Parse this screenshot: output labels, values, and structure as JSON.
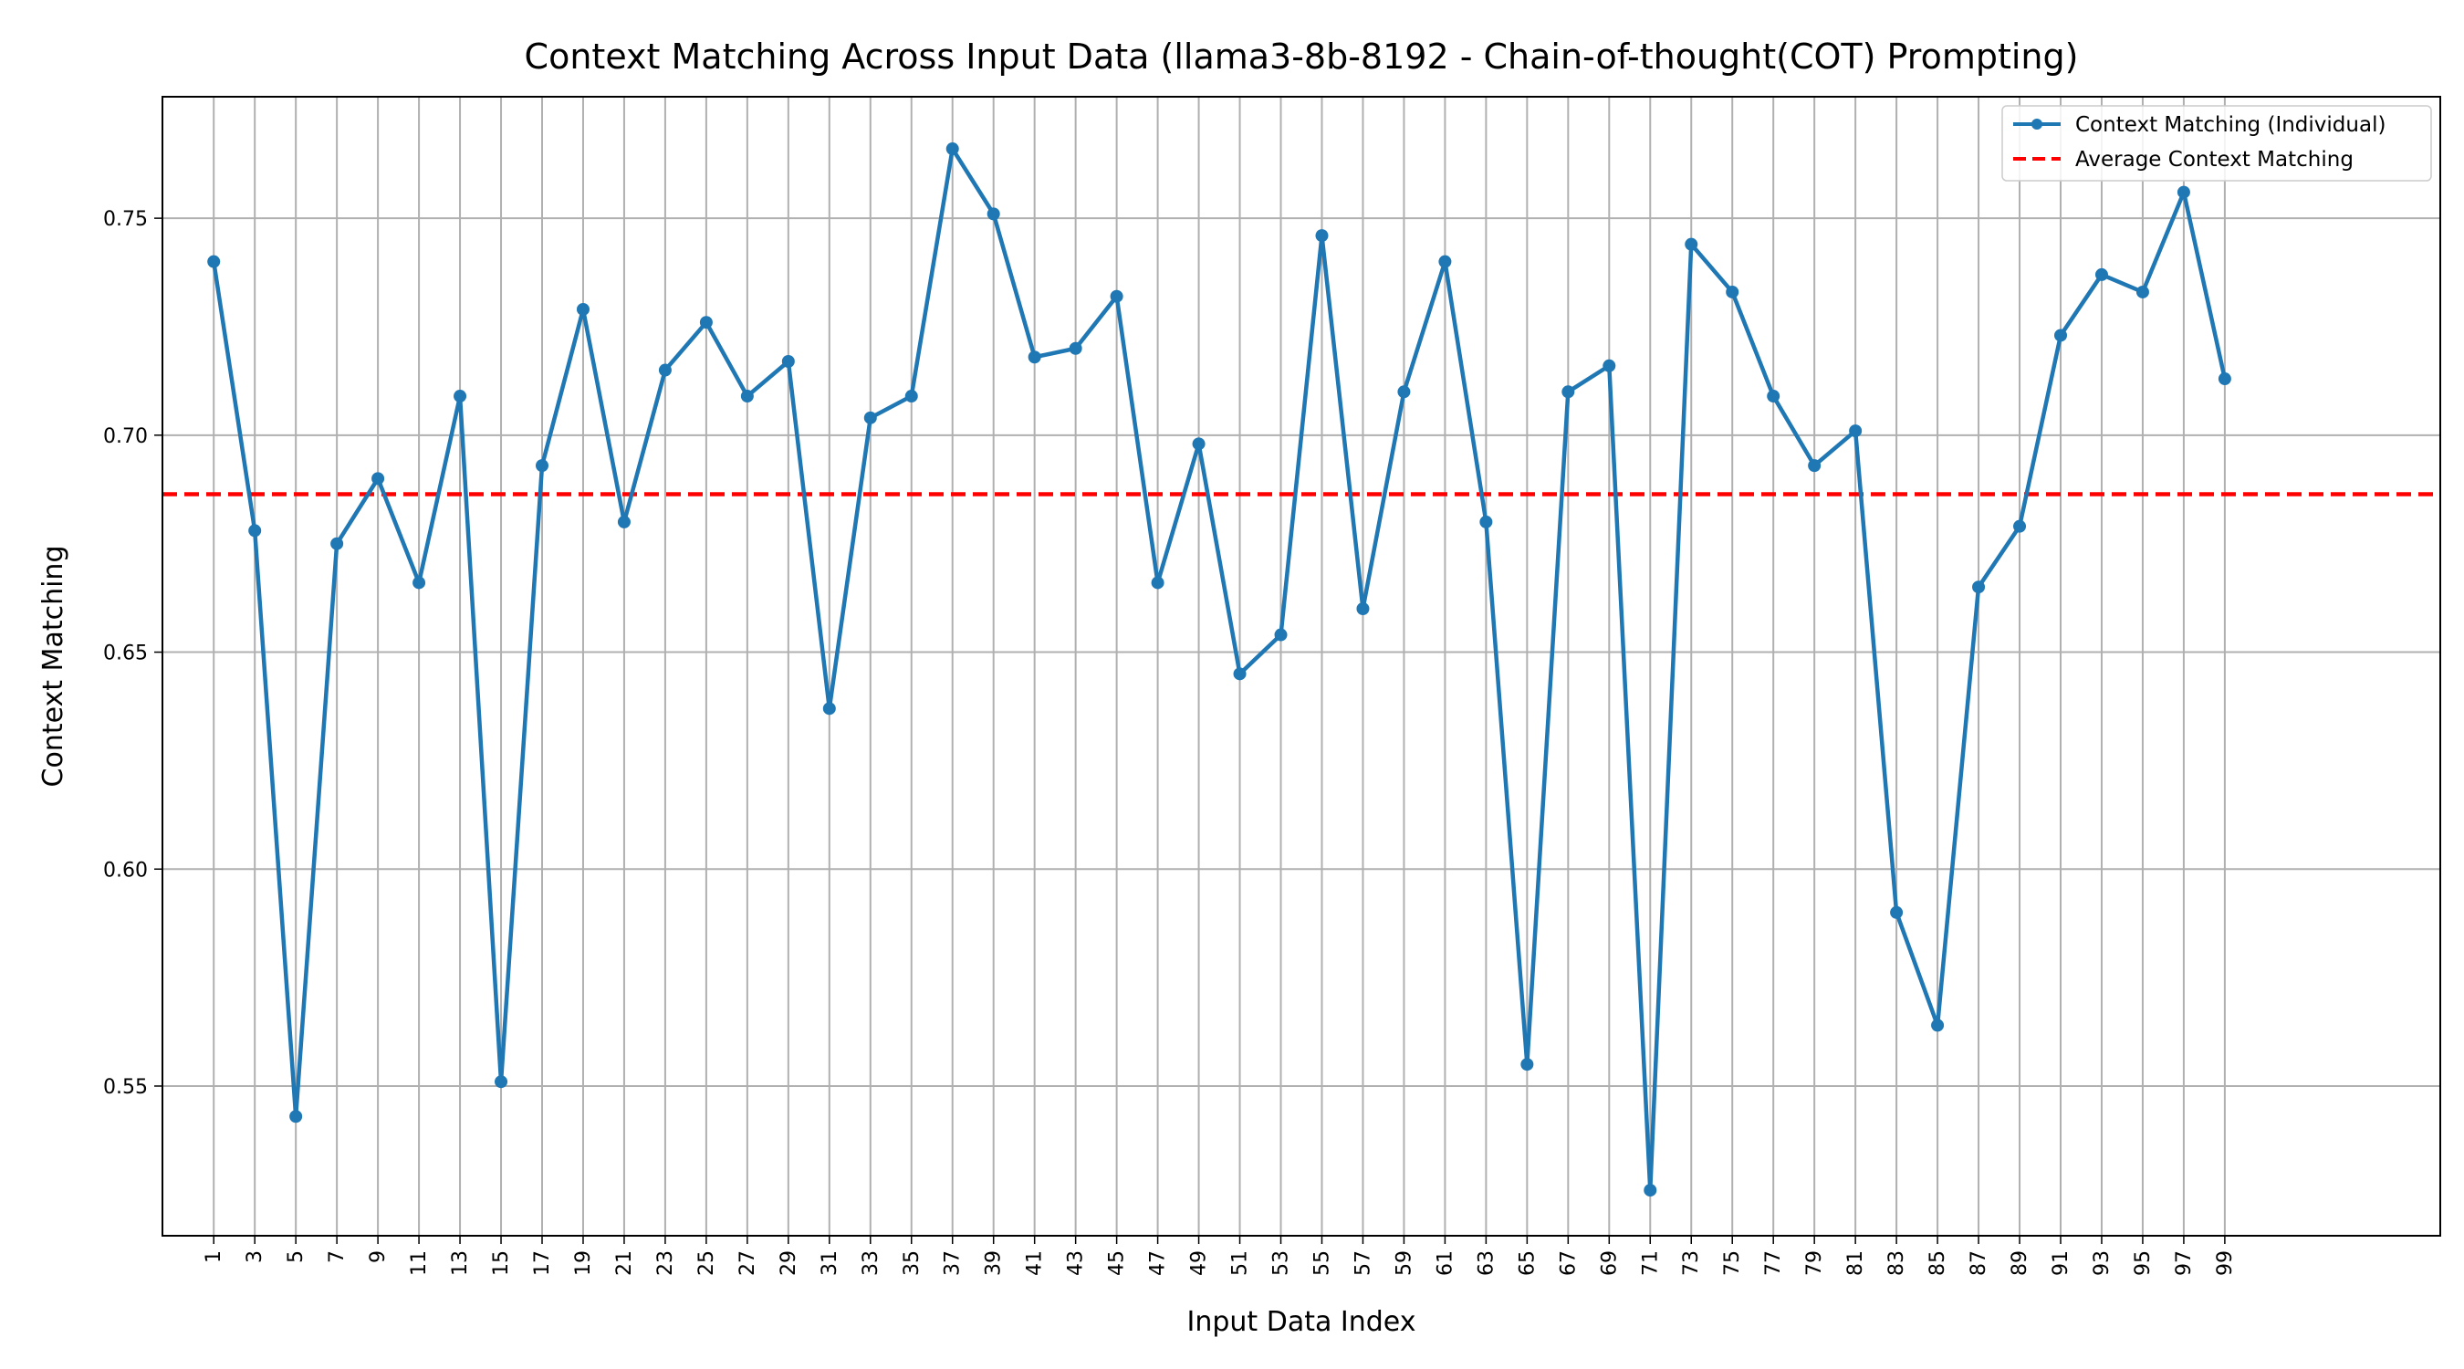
{
  "chart_data": {
    "type": "line",
    "title": "Context Matching Across Input Data (llama3-8b-8192 - Chain-of-thought(COT) Prompting)",
    "xlabel": "Input Data Index",
    "ylabel": "Context Matching",
    "xlim": [
      -1.5,
      109.5
    ],
    "ylim": [
      0.5155,
      0.778
    ],
    "x_ticks": [
      1,
      3,
      5,
      7,
      9,
      11,
      13,
      15,
      17,
      19,
      21,
      23,
      25,
      27,
      29,
      31,
      33,
      35,
      37,
      39,
      41,
      43,
      45,
      47,
      49,
      51,
      53,
      55,
      57,
      59,
      61,
      63,
      65,
      67,
      69,
      71,
      73,
      75,
      77,
      79,
      81,
      83,
      85,
      87,
      89,
      91,
      93,
      95,
      97,
      99
    ],
    "y_ticks": [
      0.55,
      0.6,
      0.65,
      0.7,
      0.75
    ],
    "y_tick_labels": [
      "0.55",
      "0.60",
      "0.65",
      "0.70",
      "0.75"
    ],
    "grid": true,
    "legend_position": "top-right",
    "series": [
      {
        "name": "Context Matching (Individual)",
        "color": "#1f77b4",
        "style": "line-marker",
        "x": [
          1,
          3,
          5,
          7,
          9,
          11,
          13,
          15,
          17,
          19,
          21,
          23,
          25,
          27,
          29,
          31,
          33,
          35,
          37,
          39,
          41,
          43,
          45,
          47,
          49,
          51,
          53,
          55,
          57,
          59,
          61,
          63,
          65,
          67,
          69,
          71,
          73,
          75,
          77,
          79,
          81,
          83,
          85,
          87,
          89,
          91,
          93,
          95,
          97,
          99
        ],
        "values": [
          0.74,
          0.678,
          0.543,
          0.675,
          0.69,
          0.666,
          0.709,
          0.551,
          0.693,
          0.729,
          0.68,
          0.715,
          0.726,
          0.709,
          0.717,
          0.637,
          0.704,
          0.709,
          0.766,
          0.751,
          0.718,
          0.72,
          0.732,
          0.666,
          0.698,
          0.645,
          0.654,
          0.746,
          0.66,
          0.71,
          0.74,
          0.68,
          0.555,
          0.71,
          0.716,
          0.526,
          0.744,
          0.733,
          0.709,
          0.693,
          0.701,
          0.59,
          0.564,
          0.665,
          0.679,
          0.723,
          0.737,
          0.733,
          0.756,
          0.713
        ]
      },
      {
        "name": "Average Context Matching",
        "color": "#ff0000",
        "style": "dashed-hline",
        "value": 0.6864
      }
    ]
  }
}
